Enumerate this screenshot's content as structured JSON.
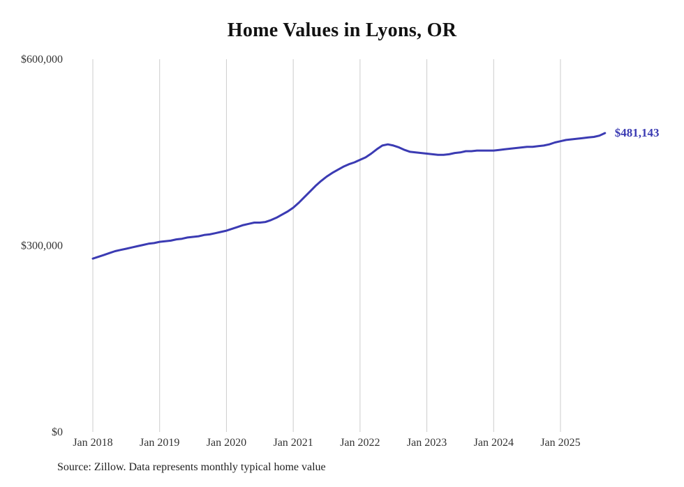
{
  "chart_data": {
    "type": "line",
    "title": "Home Values in Lyons, OR",
    "source_note": "Source: Zillow. Data represents monthly typical home value",
    "series_name": "Monthly typical home value",
    "frequency": "monthly",
    "start_month": "2018-01",
    "end_month": "2025-09",
    "end_label": "$481,143",
    "end_value": 481143,
    "line_color": "#3b3bb3",
    "grid_color": "#cccccc",
    "tick_color": "#333333",
    "title_color": "#111111",
    "ylim": [
      0,
      600000
    ],
    "xlabel": "",
    "ylabel": "",
    "legend": "none",
    "grid": "vertical-only",
    "y_ticks": [
      {
        "value": 0,
        "label": "$0"
      },
      {
        "value": 300000,
        "label": "$300,000"
      },
      {
        "value": 600000,
        "label": "$600,000"
      }
    ],
    "x_ticks": [
      "Jan 2018",
      "Jan 2019",
      "Jan 2020",
      "Jan 2021",
      "Jan 2022",
      "Jan 2023",
      "Jan 2024",
      "Jan 2025"
    ],
    "values": [
      279000,
      282000,
      285000,
      288000,
      291000,
      293000,
      295000,
      297000,
      299000,
      301000,
      303000,
      304000,
      306000,
      307000,
      308000,
      310000,
      311000,
      313000,
      314000,
      315000,
      317000,
      318000,
      320000,
      322000,
      324000,
      327000,
      330000,
      333000,
      335000,
      337000,
      337000,
      338000,
      341000,
      345000,
      350000,
      355000,
      361000,
      369000,
      378000,
      387000,
      396000,
      404000,
      411000,
      417000,
      422000,
      427000,
      431000,
      434000,
      438000,
      442000,
      448000,
      455000,
      461000,
      463000,
      461000,
      458000,
      454000,
      451000,
      450000,
      449000,
      448000,
      447000,
      446000,
      446000,
      447000,
      449000,
      450000,
      452000,
      452000,
      453000,
      453000,
      453000,
      453000,
      454000,
      455000,
      456000,
      457000,
      458000,
      459000,
      459000,
      460000,
      461000,
      463000,
      466000,
      468000,
      470000,
      471000,
      472000,
      473000,
      474000,
      475000,
      477000,
      481143
    ]
  }
}
